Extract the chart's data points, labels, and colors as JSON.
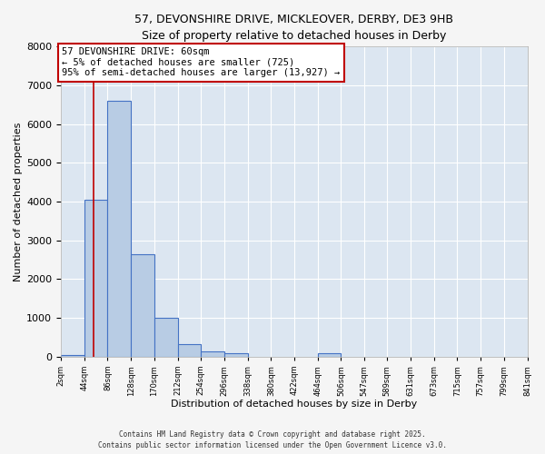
{
  "title_line1": "57, DEVONSHIRE DRIVE, MICKLEOVER, DERBY, DE3 9HB",
  "title_line2": "Size of property relative to detached houses in Derby",
  "xlabel": "Distribution of detached houses by size in Derby",
  "ylabel": "Number of detached properties",
  "bin_edges": [
    2,
    44,
    86,
    128,
    170,
    212,
    254,
    296,
    338,
    380,
    422,
    464,
    506,
    547,
    589,
    631,
    673,
    715,
    757,
    799,
    841
  ],
  "bar_heights": [
    50,
    4050,
    6600,
    2650,
    1000,
    320,
    130,
    80,
    0,
    0,
    0,
    80,
    0,
    0,
    0,
    0,
    0,
    0,
    0,
    0
  ],
  "bar_color": "#b8cce4",
  "bar_edge_color": "#4472c4",
  "background_color": "#dce6f1",
  "grid_color": "#ffffff",
  "property_size": 60,
  "red_line_color": "#c00000",
  "annotation_text": "57 DEVONSHIRE DRIVE: 60sqm\n← 5% of detached houses are smaller (725)\n95% of semi-detached houses are larger (13,927) →",
  "annotation_box_color": "#ffffff",
  "annotation_box_edge": "#c00000",
  "ylim": [
    0,
    8000
  ],
  "yticks": [
    0,
    1000,
    2000,
    3000,
    4000,
    5000,
    6000,
    7000,
    8000
  ],
  "footer_line1": "Contains HM Land Registry data © Crown copyright and database right 2025.",
  "footer_line2": "Contains public sector information licensed under the Open Government Licence v3.0.",
  "tick_labels": [
    "2sqm",
    "44sqm",
    "86sqm",
    "128sqm",
    "170sqm",
    "212sqm",
    "254sqm",
    "296sqm",
    "338sqm",
    "380sqm",
    "422sqm",
    "464sqm",
    "506sqm",
    "547sqm",
    "589sqm",
    "631sqm",
    "673sqm",
    "715sqm",
    "757sqm",
    "799sqm",
    "841sqm"
  ],
  "fig_width": 6.0,
  "fig_height": 5.0,
  "fig_bg_color": "#f5f5f5"
}
